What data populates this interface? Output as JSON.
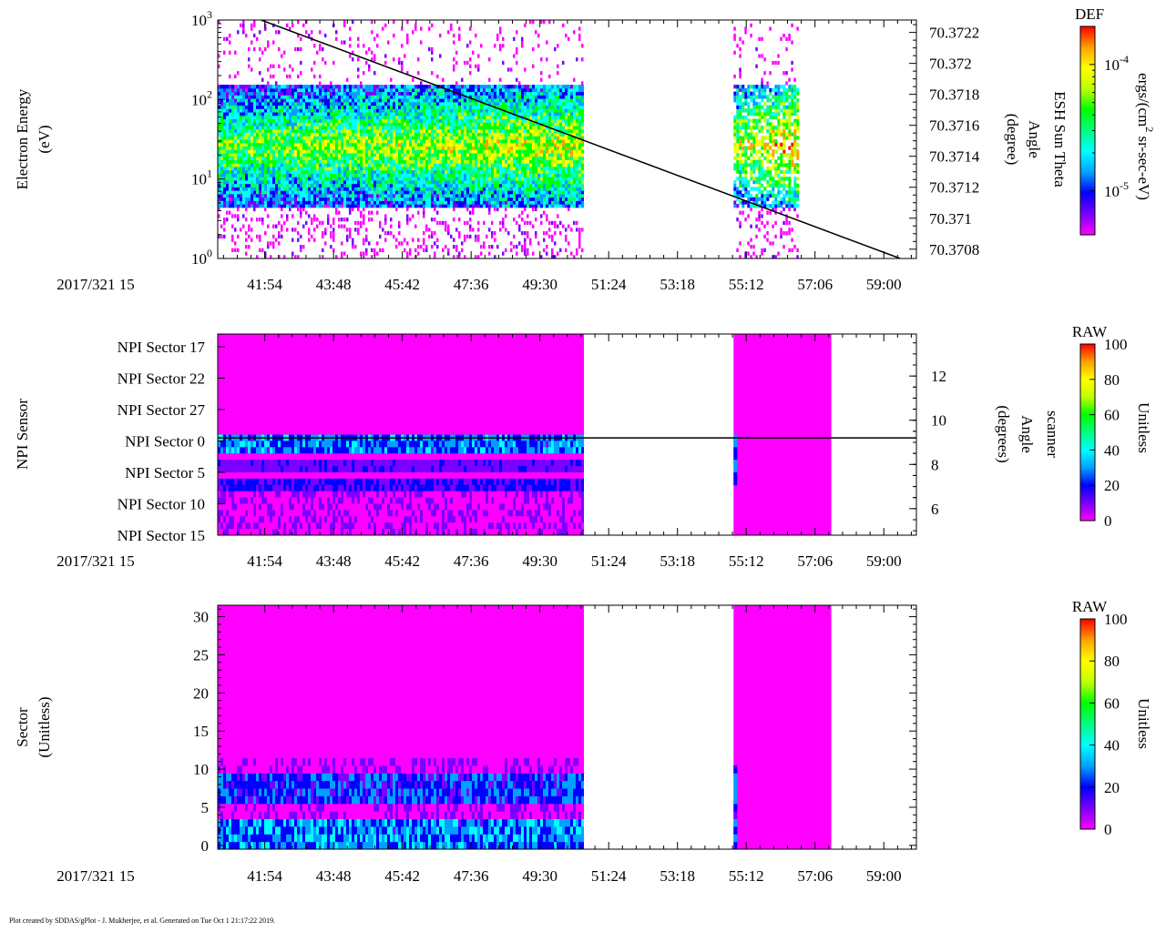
{
  "footer_text": "Plot created by SDDAS/gPlot - J. Mukherjee, et al.  Generated on Tue Oct 1 21:17:22 2019.",
  "time_axis": {
    "date_label": "2017/321 15",
    "tick_labels": [
      "41:54",
      "43:48",
      "45:42",
      "47:36",
      "49:30",
      "51:24",
      "53:18",
      "55:12",
      "57:06",
      "59:00"
    ],
    "range_minutes": [
      40.6,
      59.9
    ],
    "tick_minutes": [
      41.9,
      43.8,
      45.7,
      47.6,
      49.5,
      51.4,
      53.3,
      55.2,
      57.1,
      59.0
    ]
  },
  "colors": {
    "rainbow": [
      "#ff00ff",
      "#7a00ff",
      "#0000ff",
      "#00a0ff",
      "#00ffff",
      "#00ff80",
      "#00ff00",
      "#c0ff00",
      "#ffff00",
      "#ffa000",
      "#ff0000"
    ]
  },
  "chart_data": [
    {
      "type": "heatmap",
      "name": "electron-energy-spectrogram",
      "ylabel": [
        "Electron Energy",
        "(eV)"
      ],
      "yscale": "log",
      "ylim": [
        1,
        1000
      ],
      "y_ticks": [
        {
          "base": "10",
          "exp": "0",
          "value": 1
        },
        {
          "base": "10",
          "exp": "1",
          "value": 10
        },
        {
          "base": "10",
          "exp": "2",
          "value": 100
        },
        {
          "base": "10",
          "exp": "3",
          "value": 1000
        }
      ],
      "data_intervals_minutes": [
        [
          40.6,
          50.65
        ],
        [
          54.85,
          56.6
        ]
      ],
      "dense_band_eV": [
        4,
        150
      ],
      "peak_energy_eV": 25,
      "overlay_line": {
        "label": [
          "ESH Sun Theta",
          "Angle",
          "(degree)"
        ],
        "right_ticks": [
          "70.3722",
          "70.372",
          "70.3718",
          "70.3716",
          "70.3714",
          "70.3712",
          "70.371",
          "70.3708"
        ],
        "right_tick_values": [
          70.3722,
          70.372,
          70.3718,
          70.3716,
          70.3714,
          70.3712,
          70.371,
          70.3708
        ],
        "right_range": [
          70.37074,
          70.37228
        ],
        "start": {
          "minute": 41.8,
          "angle": 70.37228
        },
        "end": {
          "minute": 59.45,
          "angle": 70.37074
        }
      },
      "colorbar": {
        "title": "DEF",
        "unit": "ergs/(cm2 sr-sec-eV)",
        "unit_parts": [
          "ergs/(cm",
          "2",
          " sr-sec-eV)"
        ],
        "scale": "log",
        "tick_labels": [
          {
            "base": "10",
            "exp": "-4"
          },
          {
            "base": "10",
            "exp": "-5"
          }
        ],
        "tick_values": [
          0.0001,
          1e-05
        ],
        "range": [
          4.5e-06,
          0.0002
        ]
      }
    },
    {
      "type": "heatmap",
      "name": "npi-sensor-spectrogram",
      "ylabel": [
        "NPI Sensor"
      ],
      "y_tick_labels": [
        "NPI Sector 17",
        "NPI Sector 22",
        "NPI Sector 27",
        "NPI Sector 0",
        "NPI Sector 5",
        "NPI Sector 10",
        "NPI Sector 15"
      ],
      "data_intervals_minutes": [
        [
          40.6,
          50.65
        ],
        [
          54.85,
          57.55
        ]
      ],
      "overlay_line": {
        "label": [
          "scanner",
          "Angle",
          "(degrees)"
        ],
        "right_ticks": [
          "12",
          "10",
          "8",
          "6"
        ],
        "right_tick_values": [
          12,
          10,
          8,
          6
        ],
        "right_range": [
          4.8,
          13.9
        ],
        "constant_value": 9.2
      },
      "colorbar": {
        "title": "RAW",
        "unit": "Unitless",
        "tick_labels": [
          "100",
          "80",
          "60",
          "40",
          "20",
          "0"
        ],
        "tick_values": [
          100,
          80,
          60,
          40,
          20,
          0
        ],
        "range": [
          0,
          100
        ]
      }
    },
    {
      "type": "heatmap",
      "name": "sector-spectrogram",
      "ylabel": [
        "Sector",
        "(Unitless)"
      ],
      "ylim": [
        -0.5,
        31.5
      ],
      "y_tick_labels": [
        "30",
        "25",
        "20",
        "15",
        "10",
        "5",
        "0"
      ],
      "y_tick_values": [
        30,
        25,
        20,
        15,
        10,
        5,
        0
      ],
      "data_intervals_minutes": [
        [
          40.6,
          50.65
        ],
        [
          54.85,
          57.55
        ]
      ],
      "colorbar": {
        "title": "RAW",
        "unit": "Unitless",
        "tick_labels": [
          "100",
          "80",
          "60",
          "40",
          "20",
          "0"
        ],
        "tick_values": [
          100,
          80,
          60,
          40,
          20,
          0
        ],
        "range": [
          0,
          100
        ]
      }
    }
  ]
}
